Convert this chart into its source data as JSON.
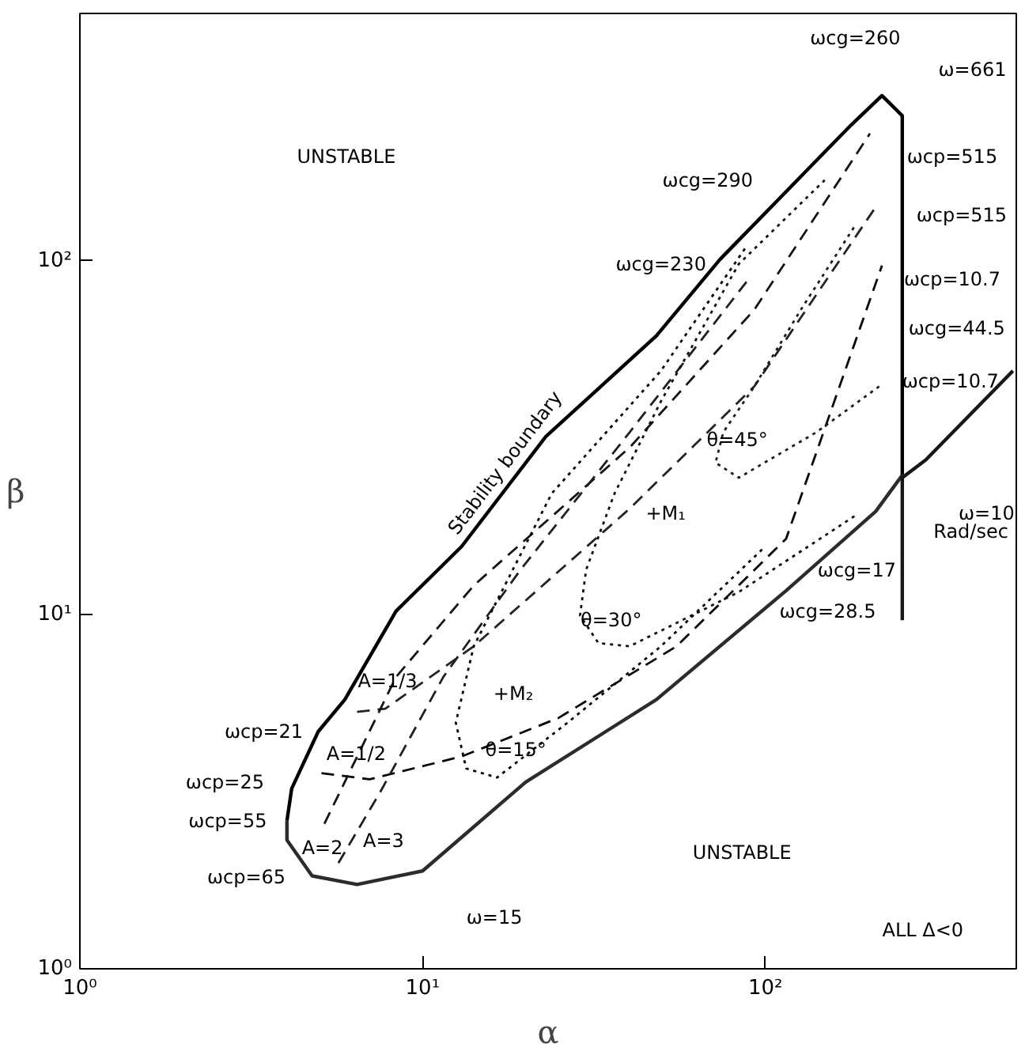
{
  "chart_data": {
    "type": "line",
    "xlabel": "α",
    "ylabel": "β",
    "log": "xy",
    "xlim": [
      1,
      540
    ],
    "ylim": [
      1,
      500
    ],
    "xticks": [
      {
        "value": 1,
        "label": "10⁰"
      },
      {
        "value": 10,
        "label": "10¹"
      },
      {
        "value": 100,
        "label": "10²"
      }
    ],
    "yticks": [
      {
        "value": 1,
        "label": "10⁰"
      },
      {
        "value": 10,
        "label": "10¹"
      },
      {
        "value": 100,
        "label": "10²"
      }
    ],
    "grid": false,
    "marker": "none",
    "series": [
      {
        "color": "#000000",
        "line_style": "solid",
        "x": [
          4.02,
          4.15,
          4.96,
          5.93,
          8.37,
          13.0,
          22.9,
          48.1,
          73.8,
          178,
          219,
          251,
          251
        ],
        "values": [
          2.62,
          3.23,
          4.68,
          5.76,
          10.25,
          15.6,
          31.9,
          61.4,
          101,
          242,
          293,
          257,
          24.8
        ]
      },
      {
        "color": "#2c2c2c",
        "line_style": "solid",
        "x": [
          251,
          210,
          115,
          48.1,
          20.0,
          10.0,
          6.44,
          4.76,
          4.02,
          4.02
        ],
        "values": [
          24.8,
          19.6,
          11.7,
          5.76,
          3.37,
          1.89,
          1.73,
          1.83,
          2.31,
          2.62
        ]
      },
      {
        "color": "#181818",
        "line_style": "solid",
        "x": [
          251,
          251,
          294,
          528
        ],
        "values": [
          9.66,
          24.4,
          27.4,
          48.9
        ]
      },
      {
        "color": "#242424",
        "line_style": "dashed",
        "x": [
          6.44,
          7.78,
          14.1,
          40.2,
          92.9,
          210
        ],
        "values": [
          5.32,
          5.43,
          8.15,
          19.95,
          44.2,
          142
        ]
      },
      {
        "color": "#080808",
        "line_style": "dashed",
        "x": [
          5.07,
          7.0,
          13.0,
          24.9,
          55.1,
          115,
          219
        ],
        "values": [
          3.57,
          3.43,
          3.98,
          5.11,
          8.15,
          16.4,
          97
        ]
      },
      {
        "color": "#141414",
        "line_style": "dashed",
        "x": [
          5.17,
          8.37,
          14.1,
          40.2,
          92.9,
          202
        ],
        "values": [
          2.57,
          6.68,
          12.1,
          29.7,
          72.8,
          229
        ]
      },
      {
        "color": "#202020",
        "line_style": "dashed",
        "x": [
          5.68,
          7.54,
          11.5,
          19.3,
          40.2,
          90.1
        ],
        "values": [
          1.99,
          3.17,
          6.68,
          13.4,
          32.8,
          89.7
        ]
      },
      {
        "color": "#040404",
        "line_style": "dotted",
        "x": [
          97.9,
          49.6,
          26.5,
          16.5,
          13.4,
          12.5,
          14.1,
          23.8,
          49.6,
          88.2
        ],
        "values": [
          15.3,
          8.15,
          4.96,
          3.47,
          3.68,
          4.96,
          8.15,
          22.0,
          48.9,
          110
        ]
      },
      {
        "color": "#101010",
        "line_style": "dotted",
        "x": [
          182,
          83.7,
          40.2,
          32.6,
          28.8,
          30.0,
          36.3,
          49.6,
          83.7,
          149
        ],
        "values": [
          19.0,
          11.6,
          8.15,
          8.32,
          9.95,
          13.4,
          22.0,
          40.1,
          98.0,
          169
        ]
      },
      {
        "color": "#1c1c1c",
        "line_style": "dotted",
        "x": [
          215,
          141,
          83.7,
          71.6,
          75.4,
          92.9,
          127,
          183
        ],
        "values": [
          44.2,
          32.8,
          24.4,
          26.9,
          32.8,
          44.2,
          72.8,
          126
        ]
      }
    ],
    "annotations": [
      "UNSTABLE",
      "UNSTABLE",
      "ALL  Δ<0",
      "Stability boundary",
      "ωcg=260",
      "ω=661",
      "ωcp=515",
      "ωcp=515",
      "ωcp=10.7",
      "ωcg=44.5",
      "ωcp=10.7",
      "ωcg=290",
      "ωcg=230",
      "ω=10",
      "Rad/sec",
      "ωcg=17",
      "ωcg=28.5",
      "θ=45°",
      "+M₁",
      "θ=30°",
      "+M₂",
      "θ=15°",
      "A=1/3",
      "ωcp=21",
      "A=1/2",
      "ωcp=25",
      "ωcp=55",
      "A=2",
      "A=3",
      "ωcp=65",
      "ω=15"
    ]
  }
}
